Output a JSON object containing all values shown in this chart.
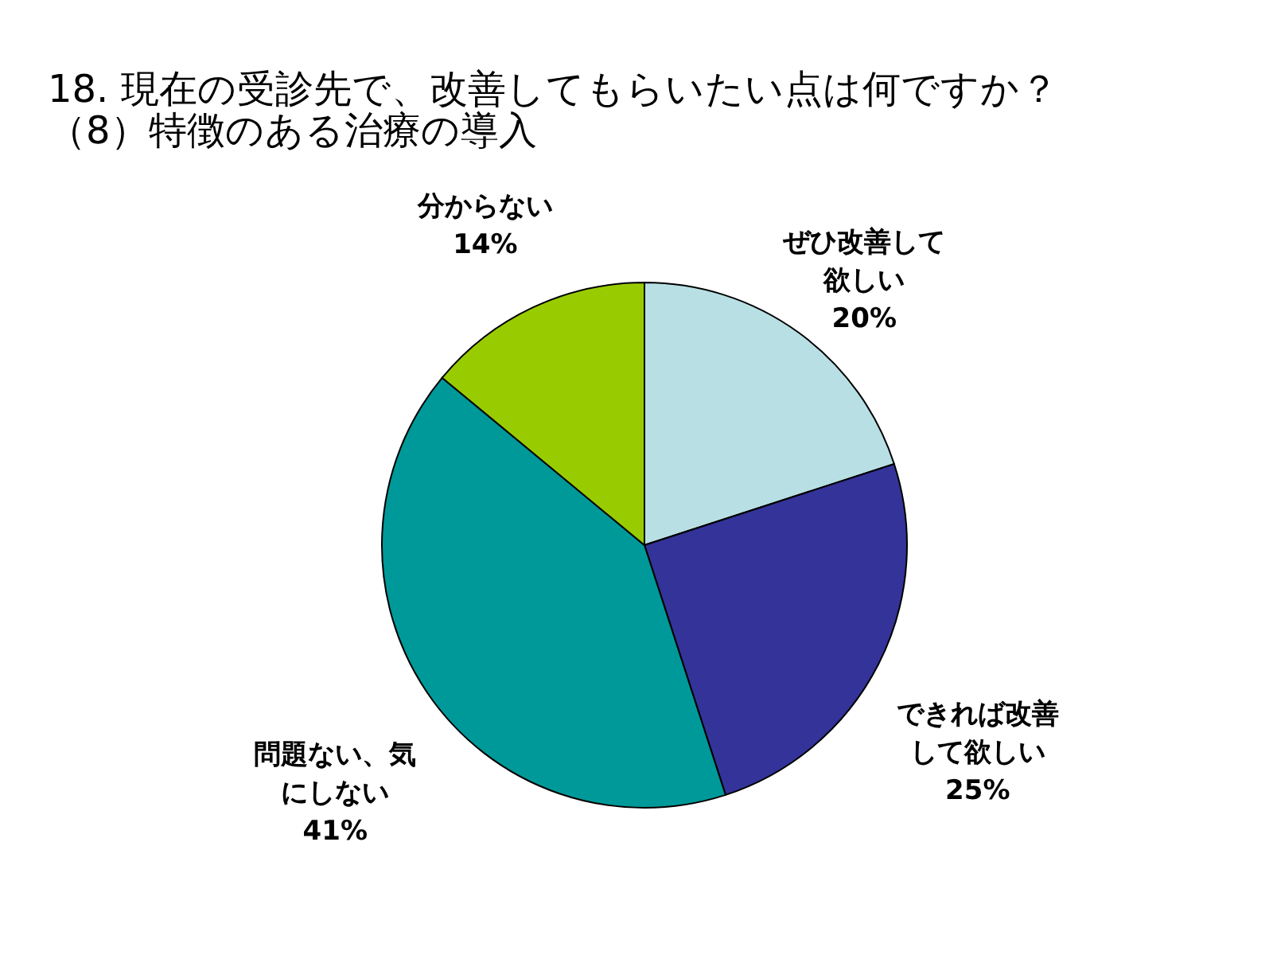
{
  "chart_data": {
    "type": "pie",
    "title": "18. 現在の受診先で、改善してもらいたい点は何ですか？",
    "subtitle": "（8）特徴のある治療の導入",
    "categories": [
      "ぜひ改善して欲しい",
      "できれば改善して欲しい",
      "問題ない、気にしない",
      "分からない"
    ],
    "values": [
      20,
      25,
      41,
      14
    ],
    "value_labels": [
      "20%",
      "25%",
      "41%",
      "14%"
    ],
    "colors": [
      "#b8e0e4",
      "#333399",
      "#009999",
      "#99cc00"
    ]
  }
}
